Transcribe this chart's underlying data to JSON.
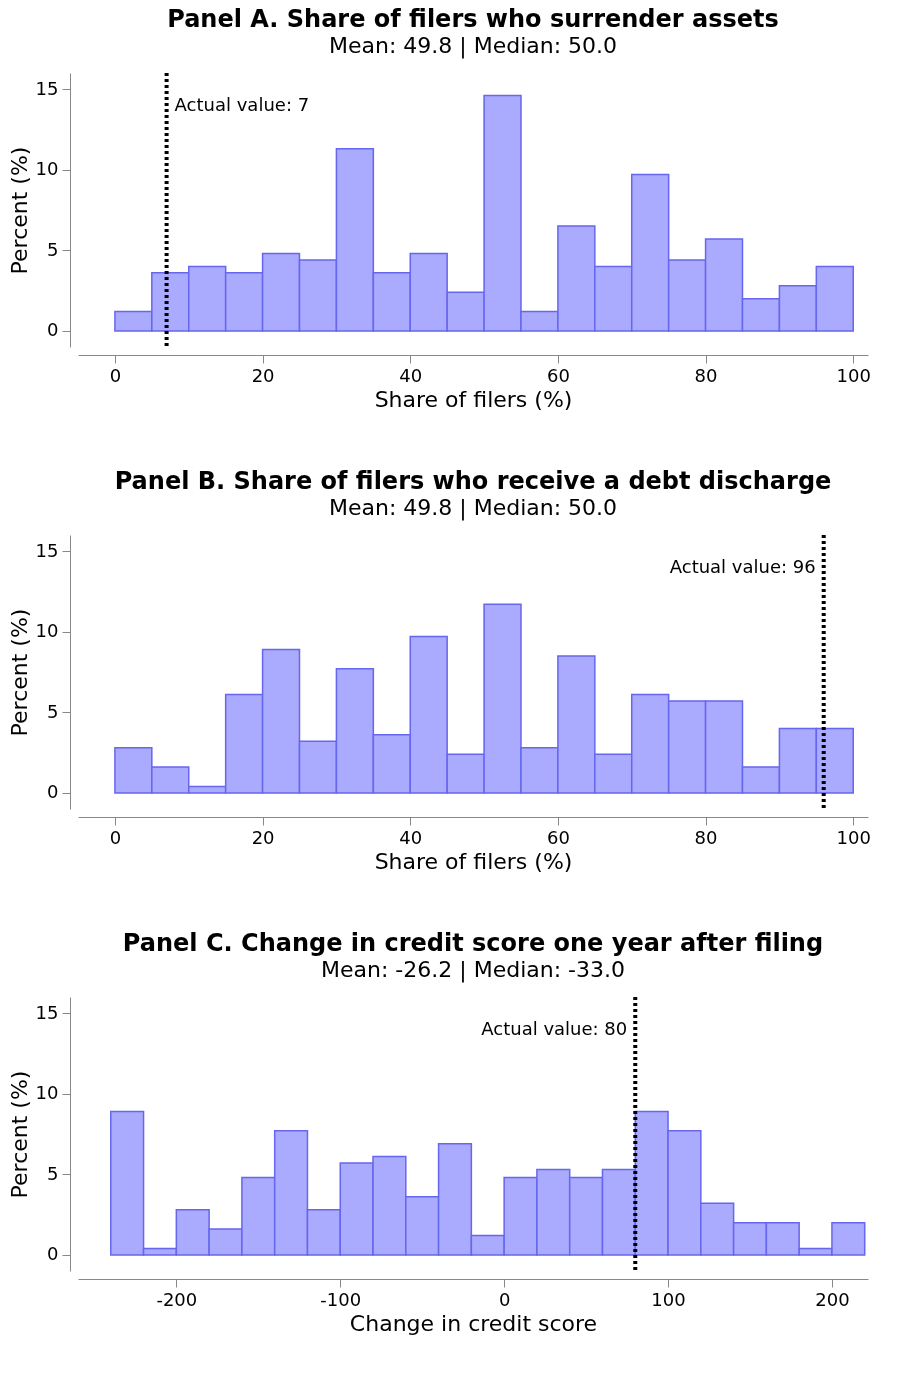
{
  "chart_data": [
    {
      "type": "histogram",
      "title": "Panel A. Share of filers who surrender assets",
      "subtitle": "Mean: 49.8 | Median: 50.0",
      "xlabel": "Share of filers (%)",
      "ylabel": "Percent (%)",
      "color": "#aaaaff",
      "bins": [
        0,
        5,
        10,
        15,
        20,
        25,
        30,
        35,
        40,
        45,
        50,
        55,
        60,
        65,
        70,
        75,
        80,
        85,
        90,
        95,
        100
      ],
      "values": [
        1.2,
        3.6,
        4.0,
        3.6,
        4.8,
        4.4,
        11.3,
        3.6,
        4.8,
        2.4,
        14.6,
        1.2,
        6.5,
        4.0,
        9.7,
        4.4,
        5.7,
        2.0,
        2.8,
        4.0
      ],
      "xlim": [
        -5,
        102
      ],
      "xticks": [
        0,
        20,
        40,
        60,
        80,
        100
      ],
      "ylim": [
        -1,
        16
      ],
      "yticks": [
        0,
        5,
        10,
        15
      ],
      "grid": false,
      "ref_lines": [
        {
          "axis": "x",
          "value": 7,
          "label": "Actual value: 7",
          "color": "#000000",
          "line_style": "dotted"
        }
      ]
    },
    {
      "type": "histogram",
      "title": "Panel B. Share of filers who receive a debt discharge",
      "subtitle": "Mean: 49.8 | Median: 50.0",
      "xlabel": "Share of filers (%)",
      "ylabel": "Percent (%)",
      "color": "#aaaaff",
      "bins": [
        0,
        5,
        10,
        15,
        20,
        25,
        30,
        35,
        40,
        45,
        50,
        55,
        60,
        65,
        70,
        75,
        80,
        85,
        90,
        95,
        100
      ],
      "values": [
        2.8,
        1.6,
        0.4,
        6.1,
        8.9,
        3.2,
        7.7,
        3.6,
        9.7,
        2.4,
        11.7,
        2.8,
        8.5,
        2.4,
        6.1,
        5.7,
        5.7,
        1.6,
        4.0,
        4.0
      ],
      "xlim": [
        -5,
        102
      ],
      "xticks": [
        0,
        20,
        40,
        60,
        80,
        100
      ],
      "ylim": [
        -1,
        16
      ],
      "yticks": [
        0,
        5,
        10,
        15
      ],
      "grid": false,
      "ref_lines": [
        {
          "axis": "x",
          "value": 96,
          "label": "Actual value: 96",
          "color": "#000000",
          "line_style": "dotted"
        }
      ]
    },
    {
      "type": "histogram",
      "title": "Panel C. Change in credit score one year after filing",
      "subtitle": "Mean: -26.2 | Median: -33.0",
      "xlabel": "Change in credit score",
      "ylabel": "Percent (%)",
      "color": "#aaaaff",
      "bins": [
        -240,
        -220,
        -200,
        -180,
        -160,
        -140,
        -120,
        -100,
        -80,
        -60,
        -40,
        -20,
        0,
        20,
        40,
        60,
        80,
        100,
        120,
        140,
        160,
        180,
        200,
        220
      ],
      "values": [
        8.9,
        0.4,
        2.8,
        1.6,
        4.8,
        7.7,
        2.8,
        5.7,
        6.1,
        3.6,
        6.9,
        1.2,
        4.8,
        5.3,
        4.8,
        5.3,
        8.9,
        7.7,
        3.2,
        2.0,
        2.0,
        0.4,
        2.0
      ],
      "xlim": [
        -260,
        222
      ],
      "xticks": [
        -200,
        -100,
        0,
        100,
        200
      ],
      "ylim": [
        -1,
        16
      ],
      "yticks": [
        0,
        5,
        10,
        15
      ],
      "grid": false,
      "ref_lines": [
        {
          "axis": "x",
          "value": 80,
          "label": "Actual value: 80",
          "color": "#000000",
          "line_style": "dotted"
        }
      ]
    }
  ]
}
